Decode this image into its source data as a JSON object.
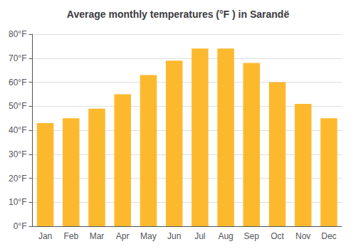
{
  "chart_data": {
    "type": "bar",
    "title": "Average monthly temperatures (°F ) in Sarandë",
    "categories": [
      "Jan",
      "Feb",
      "Mar",
      "Apr",
      "May",
      "Jun",
      "Jul",
      "Aug",
      "Sep",
      "Oct",
      "Nov",
      "Dec"
    ],
    "values": [
      43,
      45,
      49,
      55,
      63,
      69,
      74,
      74,
      68,
      60,
      51,
      45
    ],
    "color": "#FDB92E",
    "ylim": [
      0,
      80
    ],
    "yticks": [
      {
        "value": 0,
        "label": "0°F"
      },
      {
        "value": 10,
        "label": "10°F"
      },
      {
        "value": 20,
        "label": "20°F"
      },
      {
        "value": 30,
        "label": "30°F"
      },
      {
        "value": 40,
        "label": "40°F"
      },
      {
        "value": 50,
        "label": "50°F"
      },
      {
        "value": 60,
        "label": "60°F"
      },
      {
        "value": 70,
        "label": "70°F"
      },
      {
        "value": 80,
        "label": "80°F"
      }
    ],
    "grid": true
  }
}
